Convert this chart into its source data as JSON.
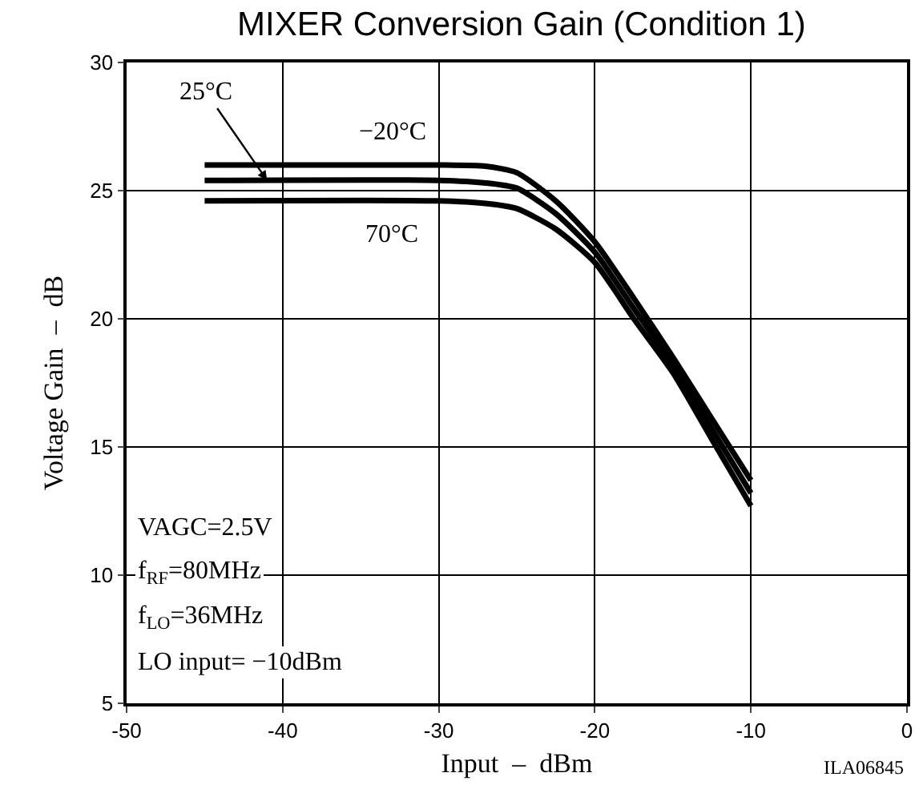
{
  "chart_data": {
    "type": "line",
    "title": "MIXER Conversion Gain (Condition 1)",
    "xlabel": "Input  –  dBm",
    "ylabel": "Voltage Gain  –  dB",
    "x": [
      -45,
      -30,
      -27,
      -25,
      -22.5,
      -20,
      -17.5,
      -15,
      -12.5,
      -10
    ],
    "series": [
      {
        "name": "−20°C",
        "color": "#000000",
        "values": [
          26.0,
          26.0,
          25.95,
          25.7,
          24.6,
          23.0,
          20.8,
          18.5,
          16.1,
          13.7
        ]
      },
      {
        "name": "25°C",
        "color": "#000000",
        "values": [
          25.4,
          25.4,
          25.3,
          25.1,
          24.1,
          22.6,
          20.4,
          18.2,
          15.7,
          13.2
        ]
      },
      {
        "name": "70°C",
        "color": "#000000",
        "values": [
          24.6,
          24.6,
          24.5,
          24.3,
          23.5,
          22.2,
          20.0,
          17.9,
          15.3,
          12.7
        ]
      }
    ],
    "xlim": [
      -50,
      0
    ],
    "xticks": [
      -50,
      -40,
      -30,
      -20,
      -10,
      0
    ],
    "ylim": [
      5,
      30
    ],
    "yticks": [
      5,
      10,
      15,
      20,
      25,
      30
    ],
    "grid": true,
    "legend": false,
    "marker": "none",
    "line_style": "solid",
    "annotations": [
      "VAGC=2.5V",
      "f$_{RF}$=80MHz",
      "f$_{LO}$=36MHz",
      "LO input= −10dBm",
      "ILA06845"
    ]
  }
}
